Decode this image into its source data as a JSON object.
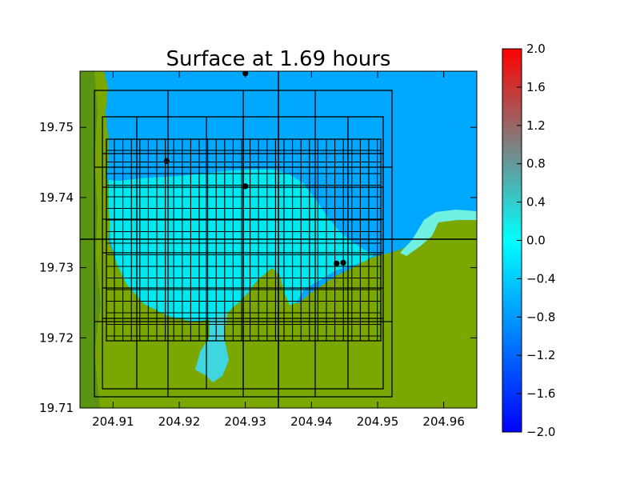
{
  "chart_data": {
    "type": "heatmap",
    "title": "Surface at 1.69 hours",
    "xlabel": "",
    "ylabel": "",
    "xlim": [
      204.905,
      204.965
    ],
    "ylim": [
      19.71,
      19.758
    ],
    "x_ticks": [
      "204.91",
      "204.92",
      "204.93",
      "204.94",
      "204.95",
      "204.96"
    ],
    "x_tick_values": [
      204.91,
      204.92,
      204.93,
      204.94,
      204.95,
      204.96
    ],
    "y_ticks": [
      "19.75",
      "19.74",
      "19.73",
      "19.72",
      "19.71"
    ],
    "y_tick_values": [
      19.75,
      19.74,
      19.73,
      19.72,
      19.71
    ],
    "grid": false,
    "colorbar": {
      "min": -2.0,
      "max": 2.0,
      "ticks": [
        "2.0",
        "1.6",
        "1.2",
        "0.8",
        "0.4",
        "0.0",
        "−0.4",
        "−0.8",
        "−1.2",
        "−1.6",
        "−2.0"
      ],
      "tick_values": [
        2.0,
        1.6,
        1.2,
        0.8,
        0.4,
        0.0,
        -0.4,
        -0.8,
        -1.2,
        -1.6,
        -2.0
      ],
      "colors": [
        "#0000ff",
        "#00ffff",
        "#ff0000"
      ]
    },
    "colors": {
      "deep_water": "#00a8ff",
      "bay_water": "#00e8f0",
      "land": "#7aa800",
      "land_dark": "#4f8c1a",
      "grid_lines": "#000000"
    },
    "gauges": [
      {
        "x": 204.93,
        "y": 19.7577
      },
      {
        "x": 204.9181,
        "y": 19.7452
      },
      {
        "x": 204.93,
        "y": 19.7416
      },
      {
        "x": 204.9438,
        "y": 19.7306
      },
      {
        "x": 204.9448,
        "y": 19.7307
      }
    ]
  }
}
